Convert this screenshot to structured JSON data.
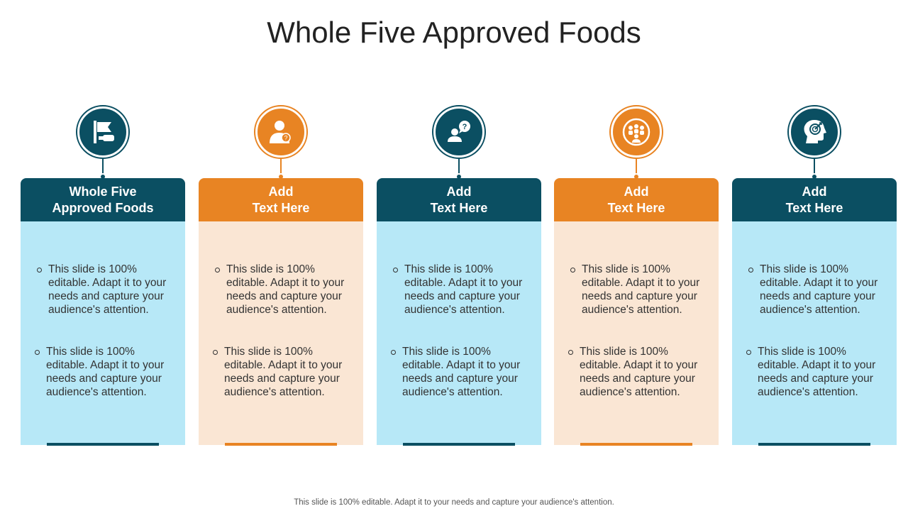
{
  "title": "Whole Five Approved Foods",
  "colors": {
    "teal": "#0b4f62",
    "orange": "#e88423",
    "light_blue": "#b7e8f7",
    "light_orange": "#fae6d4"
  },
  "columns": [
    {
      "theme": "teal",
      "icon": "flag-hand-icon",
      "header_line1": "Whole Five",
      "header_line2": "Approved Foods",
      "bullets": [
        "This slide is 100% editable. Adapt it to your needs and capture your audience's attention.",
        "This slide is 100% editable. Adapt it to your needs and capture your audience's attention."
      ]
    },
    {
      "theme": "orange",
      "icon": "person-question-icon",
      "header_line1": "Add",
      "header_line2": "Text Here",
      "bullets": [
        "This slide is 100% editable. Adapt it to your needs and capture your audience's attention.",
        "This slide is 100% editable. Adapt it to your needs and capture your audience's attention."
      ]
    },
    {
      "theme": "teal",
      "icon": "person-chat-question-icon",
      "header_line1": "Add",
      "header_line2": "Text Here",
      "bullets": [
        "This slide is 100% editable. Adapt it to your needs and capture your audience's attention.",
        "This slide is 100% editable. Adapt it to your needs and capture your audience's attention."
      ]
    },
    {
      "theme": "orange",
      "icon": "group-circle-icon",
      "header_line1": "Add",
      "header_line2": "Text Here",
      "bullets": [
        "This slide is 100% editable. Adapt it to your needs and capture your audience's attention.",
        "This slide is 100% editable. Adapt it to your needs and capture your audience's attention."
      ]
    },
    {
      "theme": "teal",
      "icon": "head-target-icon",
      "header_line1": "Add",
      "header_line2": "Text Here",
      "bullets": [
        "This slide is 100% editable. Adapt it to your needs and capture your audience's attention.",
        "This slide is 100% editable. Adapt it to your needs and capture your audience's attention."
      ]
    }
  ],
  "footer": "This slide is 100% editable. Adapt it to your needs and capture your audience's attention."
}
